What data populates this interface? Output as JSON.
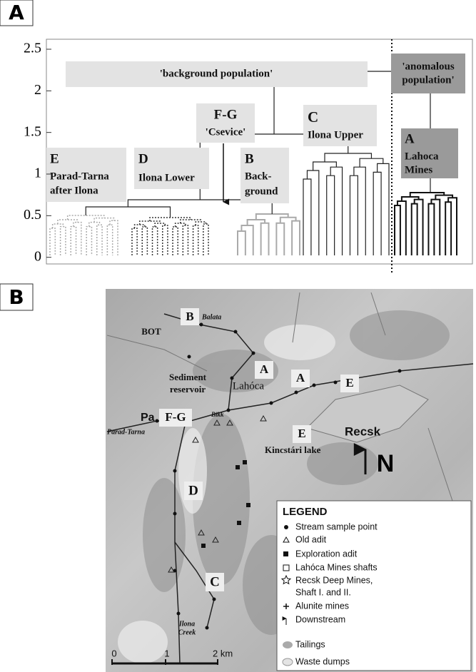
{
  "panel_a": {
    "label": "A",
    "yticks": [
      0,
      0.5,
      1,
      1.5,
      2,
      2.5
    ],
    "ylim": [
      -0.08,
      2.62
    ],
    "background": "'background population'",
    "anomalous": [
      "'anomalous",
      "population'"
    ],
    "groups": {
      "fg": [
        "F-G",
        "'Csevice'"
      ],
      "c": [
        "C",
        "Ilona Upper"
      ],
      "e": [
        "E",
        "Parad-Tarna",
        "after Ilona"
      ],
      "d": [
        "D",
        "Ilona Lower"
      ],
      "b": [
        "B",
        "Back-",
        "ground"
      ],
      "a": [
        "A",
        "Lahoca",
        "Mines"
      ]
    }
  },
  "panel_b": {
    "label": "B",
    "map_labels": {
      "b": "B",
      "balata": "Balata",
      "bot": "BOT",
      "sediment": [
        "Sediment",
        "reservoir"
      ],
      "a1": "A",
      "lahoca": "Lahóca",
      "a2": "A",
      "e1": "E",
      "pa": "Pa",
      "fg": "F-G",
      "bikk": "Bikk",
      "parad": "Parad-Tarna",
      "e2": "E",
      "recsk": "Recsk",
      "kincstari": "Kincstári lake",
      "north": "N",
      "d": "D",
      "c": "C",
      "ilona": [
        "Ilona",
        "Creek"
      ]
    },
    "scale": [
      "0",
      "1",
      "2 km"
    ],
    "legend": {
      "title": "LEGEND",
      "items": [
        "Stream sample point",
        "Old adit",
        "Exploration adit",
        "Lahóca Mines shafts",
        "Recsk Deep Mines,",
        "Shaft I. and II.",
        "Alunite mines",
        "Downstream",
        "Tailings",
        "Waste dumps"
      ]
    }
  }
}
